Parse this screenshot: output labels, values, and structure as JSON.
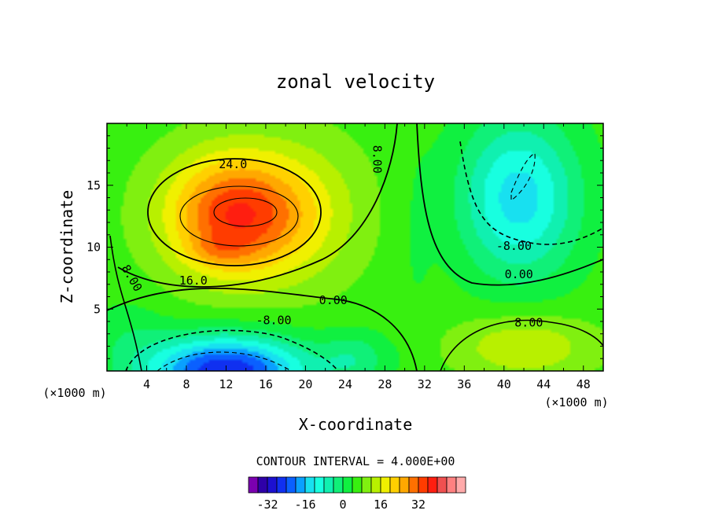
{
  "chart_data": {
    "type": "heatmap",
    "title": "zonal velocity",
    "xlabel": "X-coordinate",
    "ylabel": "Z-coordinate",
    "x_unit_left": "(×1000 m)",
    "x_unit_right": "(×1000 m)",
    "xlim": [
      0,
      50
    ],
    "ylim": [
      0,
      20
    ],
    "x_ticks": [
      4,
      8,
      12,
      16,
      20,
      24,
      28,
      32,
      36,
      40,
      44,
      48
    ],
    "y_ticks": [
      5,
      10,
      15
    ],
    "contour_interval_text": "CONTOUR INTERVAL = 4.000E+00",
    "contour_labels": [
      {
        "text": "24.0",
        "x": 12.7,
        "z": 16.7
      },
      {
        "text": "16.0",
        "x": 8.7,
        "z": 7.3
      },
      {
        "text": "8.00",
        "x": 2.5,
        "z": 7.5,
        "rot": 60
      },
      {
        "text": "8.00",
        "x": 27.2,
        "z": 17.1,
        "rot": 90
      },
      {
        "text": "0.00",
        "x": 22.8,
        "z": 5.7
      },
      {
        "text": "-8.00",
        "x": 16.8,
        "z": 4.1
      },
      {
        "text": "-8.00",
        "x": 41.0,
        "z": 10.1
      },
      {
        "text": "0.00",
        "x": 41.5,
        "z": 7.8
      },
      {
        "text": "8.00",
        "x": 42.5,
        "z": 3.9
      }
    ],
    "colorbar": {
      "colors": [
        "#7b00b0",
        "#2e00a8",
        "#1c10d0",
        "#1030f0",
        "#0a60ff",
        "#0aa0ff",
        "#18e0f0",
        "#18ffe0",
        "#10f0b0",
        "#10f078",
        "#10f040",
        "#38f010",
        "#80f010",
        "#b8f000",
        "#f0f000",
        "#ffd000",
        "#ffa800",
        "#ff7000",
        "#ff3c00",
        "#ff1e10",
        "#f05050",
        "#ff8080",
        "#ffaaaa"
      ],
      "tick_labels": [
        "-32",
        "-16",
        "0",
        "16",
        "32"
      ],
      "tick_values": [
        -32,
        -16,
        0,
        16,
        32
      ]
    },
    "field_features": [
      {
        "kind": "positive-jet-core",
        "x": 13,
        "z": 12.5,
        "max": 36
      },
      {
        "kind": "positive-secondary",
        "x": 11,
        "z": 9.7,
        "max": 30
      },
      {
        "kind": "negative-core-bottom",
        "x": 12,
        "z": 0.3,
        "min": -28
      },
      {
        "kind": "negative-core-upper-right",
        "x": 41.5,
        "z": 15,
        "min": -14
      },
      {
        "kind": "positive-bottom-right",
        "x": 42,
        "z": 1.5,
        "max": 16
      }
    ]
  }
}
